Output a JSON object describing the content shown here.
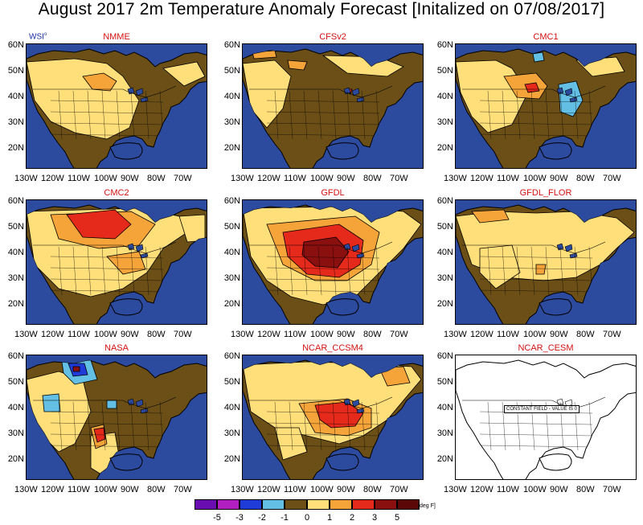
{
  "title": "August 2017 2m Temperature Anomaly Forecast [Initalized on 07/08/2017]",
  "brand": {
    "text": "WSI",
    "mark": "o"
  },
  "lat_labels": [
    "60N",
    "50N",
    "40N",
    "30N",
    "20N"
  ],
  "lon_labels": [
    "130W",
    "120W",
    "110W",
    "100W",
    "90W",
    "80W",
    "70W"
  ],
  "panels": [
    {
      "name": "NMME",
      "row": 0,
      "col": 0,
      "scheme": "nmme"
    },
    {
      "name": "CFSv2",
      "row": 0,
      "col": 1,
      "scheme": "cfs"
    },
    {
      "name": "CMC1",
      "row": 0,
      "col": 2,
      "scheme": "cmc1"
    },
    {
      "name": "CMC2",
      "row": 1,
      "col": 0,
      "scheme": "cmc2"
    },
    {
      "name": "GFDL",
      "row": 1,
      "col": 1,
      "scheme": "gfdl"
    },
    {
      "name": "GFDL_FLOR",
      "row": 1,
      "col": 2,
      "scheme": "flor"
    },
    {
      "name": "NASA",
      "row": 2,
      "col": 0,
      "scheme": "nasa"
    },
    {
      "name": "NCAR_CCSM4",
      "row": 2,
      "col": 1,
      "scheme": "ccsm4"
    },
    {
      "name": "NCAR_CESM",
      "row": 2,
      "col": 2,
      "scheme": "cesm",
      "note": "CONSTANT FIELD - VALUE IS 0"
    }
  ],
  "legend": {
    "labels": [
      "-5",
      "-3",
      "-2",
      "-1",
      "0",
      "1",
      "2",
      "3",
      "5"
    ],
    "colors": [
      "#6a0db0",
      "#b11fc0",
      "#1f3bd8",
      "#63bfe3",
      "#6b4f17",
      "#ffdf7a",
      "#f5a43a",
      "#e5291b",
      "#8a0f0f",
      "#5c0707"
    ],
    "unit": "[deg F]"
  },
  "palette": {
    "ocean": "#2c4a9e",
    "dryland": "#6b4f17",
    "warm1": "#ffdf7a",
    "warm2": "#f5a43a",
    "warm3": "#e5291b",
    "warm4": "#8a0f0f",
    "cool1": "#63bfe3",
    "cool2": "#1f3bd8",
    "title_red": "#d41111",
    "brand_blue": "#1a2ea8"
  }
}
